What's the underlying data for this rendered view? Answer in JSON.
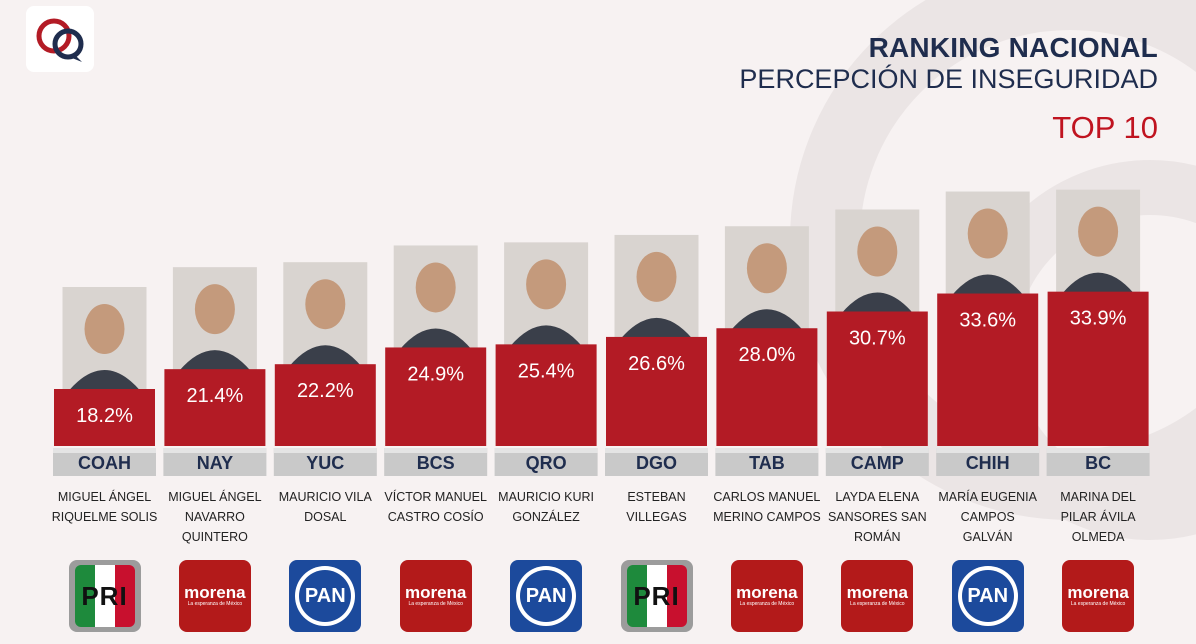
{
  "header": {
    "title": "RANKING NACIONAL",
    "subtitle": "PERCEPCIÓN DE INSEGURIDAD",
    "badge": "TOP 10"
  },
  "colors": {
    "bar": "#b31b25",
    "navy": "#1f2d4e",
    "accent_red": "#c01420",
    "label_plate": "#c9c9c9"
  },
  "chart_data": {
    "type": "bar",
    "categories": [
      "COAH",
      "NAY",
      "YUC",
      "BCS",
      "QRO",
      "DGO",
      "TAB",
      "CAMP",
      "CHIH",
      "BC"
    ],
    "values": [
      18.2,
      21.4,
      22.2,
      24.9,
      25.4,
      26.6,
      28.0,
      30.7,
      33.6,
      33.9
    ],
    "value_labels": [
      "18.2%",
      "21.4%",
      "22.2%",
      "24.9%",
      "25.4%",
      "26.6%",
      "28.0%",
      "30.7%",
      "33.6%",
      "33.9%"
    ],
    "title": "RANKING NACIONAL",
    "subtitle": "PERCEPCIÓN DE INSEGURIDAD",
    "ylim": [
      0,
      34
    ],
    "grid": false,
    "legend": "none"
  },
  "governors": [
    {
      "state": "COAH",
      "name_lines": [
        "MIGUEL ÁNGEL",
        "RIQUELME SOLIS"
      ],
      "party": "pri",
      "party_text": "PRI"
    },
    {
      "state": "NAY",
      "name_lines": [
        "MIGUEL ÁNGEL",
        "NAVARRO",
        "QUINTERO"
      ],
      "party": "morena",
      "party_text": "morena"
    },
    {
      "state": "YUC",
      "name_lines": [
        "MAURICIO VILA",
        "DOSAL"
      ],
      "party": "pan",
      "party_text": "PAN"
    },
    {
      "state": "BCS",
      "name_lines": [
        "VÍCTOR MANUEL",
        "CASTRO COSÍO"
      ],
      "party": "morena",
      "party_text": "morena"
    },
    {
      "state": "QRO",
      "name_lines": [
        "MAURICIO KURI",
        "GONZÁLEZ"
      ],
      "party": "pan",
      "party_text": "PAN"
    },
    {
      "state": "DGO",
      "name_lines": [
        "ESTEBAN",
        "VILLEGAS"
      ],
      "party": "pri",
      "party_text": "PRI"
    },
    {
      "state": "TAB",
      "name_lines": [
        "CARLOS MANUEL",
        "MERINO CAMPOS"
      ],
      "party": "morena",
      "party_text": "morena"
    },
    {
      "state": "CAMP",
      "name_lines": [
        "LAYDA ELENA",
        "SANSORES SAN",
        "ROMÁN"
      ],
      "party": "morena",
      "party_text": "morena"
    },
    {
      "state": "CHIH",
      "name_lines": [
        "MARÍA EUGENIA",
        "CAMPOS",
        "GALVÁN"
      ],
      "party": "pan",
      "party_text": "PAN"
    },
    {
      "state": "BC",
      "name_lines": [
        "MARINA DEL",
        "PILAR ÁVILA",
        "OLMEDA"
      ],
      "party": "morena",
      "party_text": "morena"
    }
  ],
  "morena_tagline": "La esperanza de México"
}
